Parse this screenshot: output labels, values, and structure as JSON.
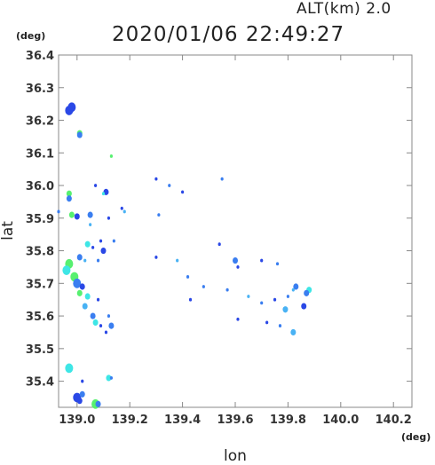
{
  "header": {
    "altitude": "ALT(km)  2.0",
    "timestamp": "2020/01/06 22:49:27",
    "lat_unit": "(deg)",
    "lon_unit": "(deg)"
  },
  "colors": {
    "dark_blue": "#2a48e6",
    "mid_blue": "#3a7ef0",
    "light_blue": "#49b2f4",
    "cyan": "#3ee6e6",
    "green": "#57f070"
  },
  "chart_data": {
    "type": "scatter",
    "title": "",
    "xlabel": "lon",
    "ylabel": "lat",
    "xlim": [
      138.93,
      140.27
    ],
    "ylim": [
      35.32,
      36.4
    ],
    "grid": false,
    "x_ticks": [
      "139.0",
      "139.2",
      "139.4",
      "139.6",
      "139.8",
      "140.0",
      "140.2"
    ],
    "x_tick_values": [
      139.0,
      139.2,
      139.4,
      139.6,
      139.8,
      140.0,
      140.2
    ],
    "y_ticks": [
      "36.4",
      "36.3",
      "36.2",
      "36.1",
      "36.0",
      "35.9",
      "35.8",
      "35.7",
      "35.6",
      "35.5",
      "35.4"
    ],
    "y_tick_values": [
      36.4,
      36.3,
      36.2,
      36.1,
      36.0,
      35.9,
      35.8,
      35.7,
      35.6,
      35.5,
      35.4
    ],
    "points": [
      {
        "x": 138.98,
        "y": 36.24,
        "c": "dark_blue",
        "s": 3
      },
      {
        "x": 138.97,
        "y": 36.23,
        "c": "dark_blue",
        "s": 3
      },
      {
        "x": 139.01,
        "y": 36.16,
        "c": "green",
        "s": 2
      },
      {
        "x": 139.01,
        "y": 36.155,
        "c": "mid_blue",
        "s": 2
      },
      {
        "x": 139.13,
        "y": 36.09,
        "c": "green",
        "s": 1
      },
      {
        "x": 139.07,
        "y": 36.0,
        "c": "dark_blue",
        "s": 1
      },
      {
        "x": 139.11,
        "y": 35.98,
        "c": "dark_blue",
        "s": 2
      },
      {
        "x": 139.1,
        "y": 35.975,
        "c": "cyan",
        "s": 1
      },
      {
        "x": 138.97,
        "y": 35.975,
        "c": "green",
        "s": 2
      },
      {
        "x": 138.97,
        "y": 35.96,
        "c": "mid_blue",
        "s": 2
      },
      {
        "x": 138.93,
        "y": 35.92,
        "c": "mid_blue",
        "s": 1
      },
      {
        "x": 138.98,
        "y": 35.91,
        "c": "green",
        "s": 2
      },
      {
        "x": 139.0,
        "y": 35.905,
        "c": "dark_blue",
        "s": 2
      },
      {
        "x": 139.05,
        "y": 35.91,
        "c": "mid_blue",
        "s": 2
      },
      {
        "x": 139.05,
        "y": 35.88,
        "c": "light_blue",
        "s": 1
      },
      {
        "x": 139.12,
        "y": 35.9,
        "c": "dark_blue",
        "s": 1
      },
      {
        "x": 139.17,
        "y": 35.93,
        "c": "dark_blue",
        "s": 1
      },
      {
        "x": 139.18,
        "y": 35.92,
        "c": "light_blue",
        "s": 1
      },
      {
        "x": 139.3,
        "y": 36.02,
        "c": "dark_blue",
        "s": 1
      },
      {
        "x": 139.35,
        "y": 36.0,
        "c": "mid_blue",
        "s": 1
      },
      {
        "x": 139.4,
        "y": 35.98,
        "c": "dark_blue",
        "s": 1
      },
      {
        "x": 139.31,
        "y": 35.91,
        "c": "mid_blue",
        "s": 1
      },
      {
        "x": 139.55,
        "y": 36.02,
        "c": "mid_blue",
        "s": 1
      },
      {
        "x": 139.04,
        "y": 35.82,
        "c": "cyan",
        "s": 2
      },
      {
        "x": 139.06,
        "y": 35.81,
        "c": "dark_blue",
        "s": 1
      },
      {
        "x": 139.09,
        "y": 35.83,
        "c": "dark_blue",
        "s": 1
      },
      {
        "x": 139.14,
        "y": 35.83,
        "c": "mid_blue",
        "s": 1
      },
      {
        "x": 139.1,
        "y": 35.8,
        "c": "dark_blue",
        "s": 2
      },
      {
        "x": 138.97,
        "y": 35.76,
        "c": "green",
        "s": 3
      },
      {
        "x": 138.96,
        "y": 35.74,
        "c": "cyan",
        "s": 3
      },
      {
        "x": 139.01,
        "y": 35.78,
        "c": "mid_blue",
        "s": 2
      },
      {
        "x": 139.03,
        "y": 35.77,
        "c": "light_blue",
        "s": 1
      },
      {
        "x": 139.08,
        "y": 35.77,
        "c": "mid_blue",
        "s": 1
      },
      {
        "x": 138.99,
        "y": 35.72,
        "c": "green",
        "s": 3
      },
      {
        "x": 139.0,
        "y": 35.7,
        "c": "mid_blue",
        "s": 3
      },
      {
        "x": 139.02,
        "y": 35.69,
        "c": "dark_blue",
        "s": 2
      },
      {
        "x": 139.01,
        "y": 35.67,
        "c": "green",
        "s": 2
      },
      {
        "x": 139.04,
        "y": 35.66,
        "c": "cyan",
        "s": 2
      },
      {
        "x": 139.03,
        "y": 35.63,
        "c": "light_blue",
        "s": 2
      },
      {
        "x": 139.08,
        "y": 35.65,
        "c": "dark_blue",
        "s": 1
      },
      {
        "x": 139.06,
        "y": 35.6,
        "c": "mid_blue",
        "s": 2
      },
      {
        "x": 139.07,
        "y": 35.58,
        "c": "cyan",
        "s": 2
      },
      {
        "x": 139.09,
        "y": 35.57,
        "c": "dark_blue",
        "s": 1
      },
      {
        "x": 139.12,
        "y": 35.6,
        "c": "mid_blue",
        "s": 1
      },
      {
        "x": 139.13,
        "y": 35.57,
        "c": "mid_blue",
        "s": 2
      },
      {
        "x": 139.11,
        "y": 35.55,
        "c": "dark_blue",
        "s": 1
      },
      {
        "x": 139.3,
        "y": 35.78,
        "c": "dark_blue",
        "s": 1
      },
      {
        "x": 139.38,
        "y": 35.77,
        "c": "light_blue",
        "s": 1
      },
      {
        "x": 139.42,
        "y": 35.72,
        "c": "mid_blue",
        "s": 1
      },
      {
        "x": 139.43,
        "y": 35.65,
        "c": "dark_blue",
        "s": 1
      },
      {
        "x": 139.48,
        "y": 35.69,
        "c": "mid_blue",
        "s": 1
      },
      {
        "x": 139.54,
        "y": 35.82,
        "c": "dark_blue",
        "s": 1
      },
      {
        "x": 139.6,
        "y": 35.77,
        "c": "mid_blue",
        "s": 2
      },
      {
        "x": 139.61,
        "y": 35.75,
        "c": "dark_blue",
        "s": 1
      },
      {
        "x": 139.57,
        "y": 35.68,
        "c": "mid_blue",
        "s": 1
      },
      {
        "x": 139.65,
        "y": 35.66,
        "c": "light_blue",
        "s": 1
      },
      {
        "x": 139.61,
        "y": 35.59,
        "c": "dark_blue",
        "s": 1
      },
      {
        "x": 139.7,
        "y": 35.77,
        "c": "dark_blue",
        "s": 1
      },
      {
        "x": 139.76,
        "y": 35.76,
        "c": "mid_blue",
        "s": 1
      },
      {
        "x": 139.7,
        "y": 35.64,
        "c": "mid_blue",
        "s": 1
      },
      {
        "x": 139.75,
        "y": 35.65,
        "c": "dark_blue",
        "s": 1
      },
      {
        "x": 139.77,
        "y": 35.57,
        "c": "mid_blue",
        "s": 1
      },
      {
        "x": 139.79,
        "y": 35.62,
        "c": "light_blue",
        "s": 2
      },
      {
        "x": 139.8,
        "y": 35.66,
        "c": "mid_blue",
        "s": 1
      },
      {
        "x": 139.72,
        "y": 35.58,
        "c": "dark_blue",
        "s": 1
      },
      {
        "x": 139.83,
        "y": 35.69,
        "c": "mid_blue",
        "s": 2
      },
      {
        "x": 139.82,
        "y": 35.68,
        "c": "light_blue",
        "s": 1
      },
      {
        "x": 139.86,
        "y": 35.63,
        "c": "dark_blue",
        "s": 2
      },
      {
        "x": 139.88,
        "y": 35.68,
        "c": "cyan",
        "s": 2
      },
      {
        "x": 139.87,
        "y": 35.67,
        "c": "mid_blue",
        "s": 2
      },
      {
        "x": 139.82,
        "y": 35.55,
        "c": "light_blue",
        "s": 2
      },
      {
        "x": 138.97,
        "y": 35.44,
        "c": "cyan",
        "s": 3
      },
      {
        "x": 139.12,
        "y": 35.41,
        "c": "cyan",
        "s": 2
      },
      {
        "x": 139.13,
        "y": 35.41,
        "c": "mid_blue",
        "s": 1
      },
      {
        "x": 139.02,
        "y": 35.4,
        "c": "dark_blue",
        "s": 1
      },
      {
        "x": 139.0,
        "y": 35.35,
        "c": "dark_blue",
        "s": 3
      },
      {
        "x": 139.02,
        "y": 35.36,
        "c": "mid_blue",
        "s": 2
      },
      {
        "x": 139.01,
        "y": 35.34,
        "c": "dark_blue",
        "s": 2
      },
      {
        "x": 139.07,
        "y": 35.33,
        "c": "green",
        "s": 3
      },
      {
        "x": 139.08,
        "y": 35.33,
        "c": "mid_blue",
        "s": 2
      }
    ]
  }
}
